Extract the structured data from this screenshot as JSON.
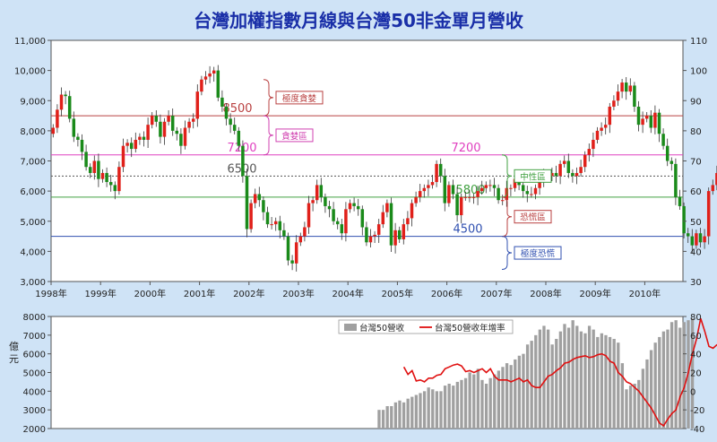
{
  "chart_data": [
    {
      "type": "candlestick",
      "title": "台灣加權指數月線與台灣50非金單月營收",
      "ylim": [
        3000,
        11000
      ],
      "y_ticks": [
        "3,000",
        "4,000",
        "5,000",
        "6,000",
        "7,000",
        "8,000",
        "9,000",
        "10,000",
        "11,000"
      ],
      "y2lim": [
        30,
        110
      ],
      "y2_ticks": [
        "30",
        "40",
        "50",
        "60",
        "70",
        "80",
        "90",
        "100",
        "110"
      ],
      "x_ticks": [
        "1998年",
        "1999年",
        "2000年",
        "2001年",
        "2002年",
        "2003年",
        "2004年",
        "2005年",
        "2006年",
        "2007年",
        "2008年",
        "2009年",
        "2010年"
      ],
      "x_start_year": 1998,
      "x_end_year": 2010.5,
      "up_color": "#e0201a",
      "down_color": "#1a8a1a",
      "grid": false,
      "reference_lines": [
        {
          "value": 8500,
          "label": "8500",
          "color": "#b94040"
        },
        {
          "value": 7200,
          "label": "7200",
          "color": "#e040c0"
        },
        {
          "value": 6500,
          "label": "6500",
          "color": "#555555",
          "dashed": true
        },
        {
          "value": 5800,
          "label": "5800",
          "color": "#40a040"
        },
        {
          "value": 4500,
          "label": "4500",
          "color": "#3050b0"
        }
      ],
      "second_7200_label": "7200",
      "annotations": [
        {
          "text": "極度貪婪",
          "color": "#b94040",
          "y_from": 8500,
          "y_to": 9700
        },
        {
          "text": "貪婪區",
          "color": "#d040b0",
          "y_from": 7200,
          "y_to": 8500
        },
        {
          "text": "中性區",
          "color": "#40a040",
          "y_from": 5800,
          "y_to": 7200
        },
        {
          "text": "恐慌區",
          "color": "#b94040",
          "y_from": 4500,
          "y_to": 5800
        },
        {
          "text": "極度恐慌",
          "color": "#3050b0",
          "y_from": 3400,
          "y_to": 4500
        }
      ],
      "series": [
        {
          "name": "",
          "monthly_close": [
            8100,
            8700,
            9200,
            9150,
            8400,
            7800,
            7700,
            7300,
            6800,
            6600,
            7000,
            6400,
            6600,
            6300,
            6200,
            6000,
            6800,
            7500,
            7600,
            7400,
            7700,
            7800,
            7700,
            8200,
            8500,
            8300,
            7800,
            8300,
            8500,
            8000,
            7900,
            7500,
            8100,
            8300,
            8400,
            9300,
            9700,
            9800,
            9900,
            10000,
            9100,
            8800,
            8400,
            8200,
            8000,
            7500,
            6500,
            4740,
            5600,
            5900,
            5700,
            5300,
            4900,
            4900,
            5000,
            4700,
            4500,
            3700,
            3600,
            4300,
            4500,
            4800,
            5600,
            5700,
            6200,
            5800,
            5500,
            5400,
            5000,
            4900,
            4600,
            5400,
            5600,
            5500,
            5400,
            4800,
            4300,
            4500,
            4550,
            4900,
            5300,
            5600,
            4200,
            4700,
            4400,
            4900,
            5100,
            5600,
            5800,
            6000,
            6100,
            6200,
            6300,
            6900,
            6500,
            5600,
            6200,
            5900,
            5200,
            5800,
            5800,
            5800,
            5800,
            6000,
            6100,
            6200,
            6200,
            6100,
            5700,
            5700,
            6100,
            6100,
            6400,
            6200,
            6000,
            5900,
            5900,
            6100,
            6400,
            6500,
            6500,
            6600,
            6500,
            6900,
            7000,
            6600,
            6500,
            6600,
            6800,
            7200,
            7400,
            7700,
            8000,
            8100,
            8200,
            8800,
            9000,
            9300,
            9600,
            9300,
            9500,
            8800,
            8200,
            8400,
            8500,
            8100,
            8600,
            7900,
            7500,
            7000,
            6900,
            5800,
            5500,
            4600,
            4500,
            4200,
            4600,
            4300,
            4500,
            6000,
            6200,
            6600,
            6800,
            7000,
            7100,
            7500,
            7700,
            8000,
            8100,
            8200,
            7600,
            7800,
            8000,
            7500,
            7300,
            7900,
            7700,
            7400,
            8000
          ]
        }
      ]
    },
    {
      "type": "bar+line",
      "ylim": [
        2000,
        8000
      ],
      "y_ticks": [
        "2000",
        "3000",
        "4000",
        "5000",
        "6000",
        "7000",
        "8000"
      ],
      "ylabel": "億元",
      "y2lim": [
        -40,
        80
      ],
      "y2_ticks": [
        "-40",
        "-20",
        "0",
        "20",
        "40",
        "60",
        "80"
      ],
      "legend_placement": "top-center",
      "series": [
        {
          "name": "台灣50營收",
          "kind": "bar",
          "color": "#a0a0a0",
          "start_year": 2004.6,
          "values": [
            3000,
            3000,
            3200,
            3200,
            3400,
            3500,
            3400,
            3600,
            3700,
            3800,
            3900,
            4000,
            4200,
            4100,
            4000,
            4000,
            4300,
            4400,
            4300,
            4500,
            4600,
            4700,
            5000,
            4900,
            5200,
            4600,
            4400,
            4700,
            4900,
            5100,
            5300,
            5500,
            5400,
            5700,
            5900,
            6000,
            6500,
            6700,
            7000,
            7300,
            7500,
            7300,
            6500,
            6800,
            7200,
            7600,
            7400,
            7800,
            7500,
            7200,
            7100,
            7500,
            7300,
            6900,
            7100,
            7000,
            6900,
            6800,
            6600,
            5500,
            4100,
            4300,
            4400,
            4600,
            5200,
            5700,
            6200,
            6600,
            6900,
            7200,
            7300,
            7700,
            7800,
            7400,
            7700,
            7800,
            7900
          ]
        },
        {
          "name": "台灣50營收年增率",
          "kind": "line",
          "color": "#e01010",
          "start_year": 2005.1,
          "values": [
            26,
            18,
            22,
            11,
            12,
            10,
            14,
            14,
            17,
            18,
            24,
            26,
            28,
            29,
            27,
            21,
            22,
            20,
            22,
            24,
            20,
            24,
            16,
            12,
            12,
            12,
            10,
            12,
            14,
            10,
            12,
            6,
            4,
            4,
            10,
            16,
            18,
            22,
            25,
            30,
            31,
            34,
            36,
            37,
            38,
            36,
            37,
            39,
            40,
            38,
            32,
            30,
            20,
            16,
            10,
            8,
            4,
            0,
            -6,
            -12,
            -18,
            -26,
            -34,
            -37,
            -30,
            -24,
            -20,
            -6,
            4,
            20,
            40,
            56,
            78,
            64,
            48,
            46,
            50
          ]
        }
      ]
    }
  ]
}
